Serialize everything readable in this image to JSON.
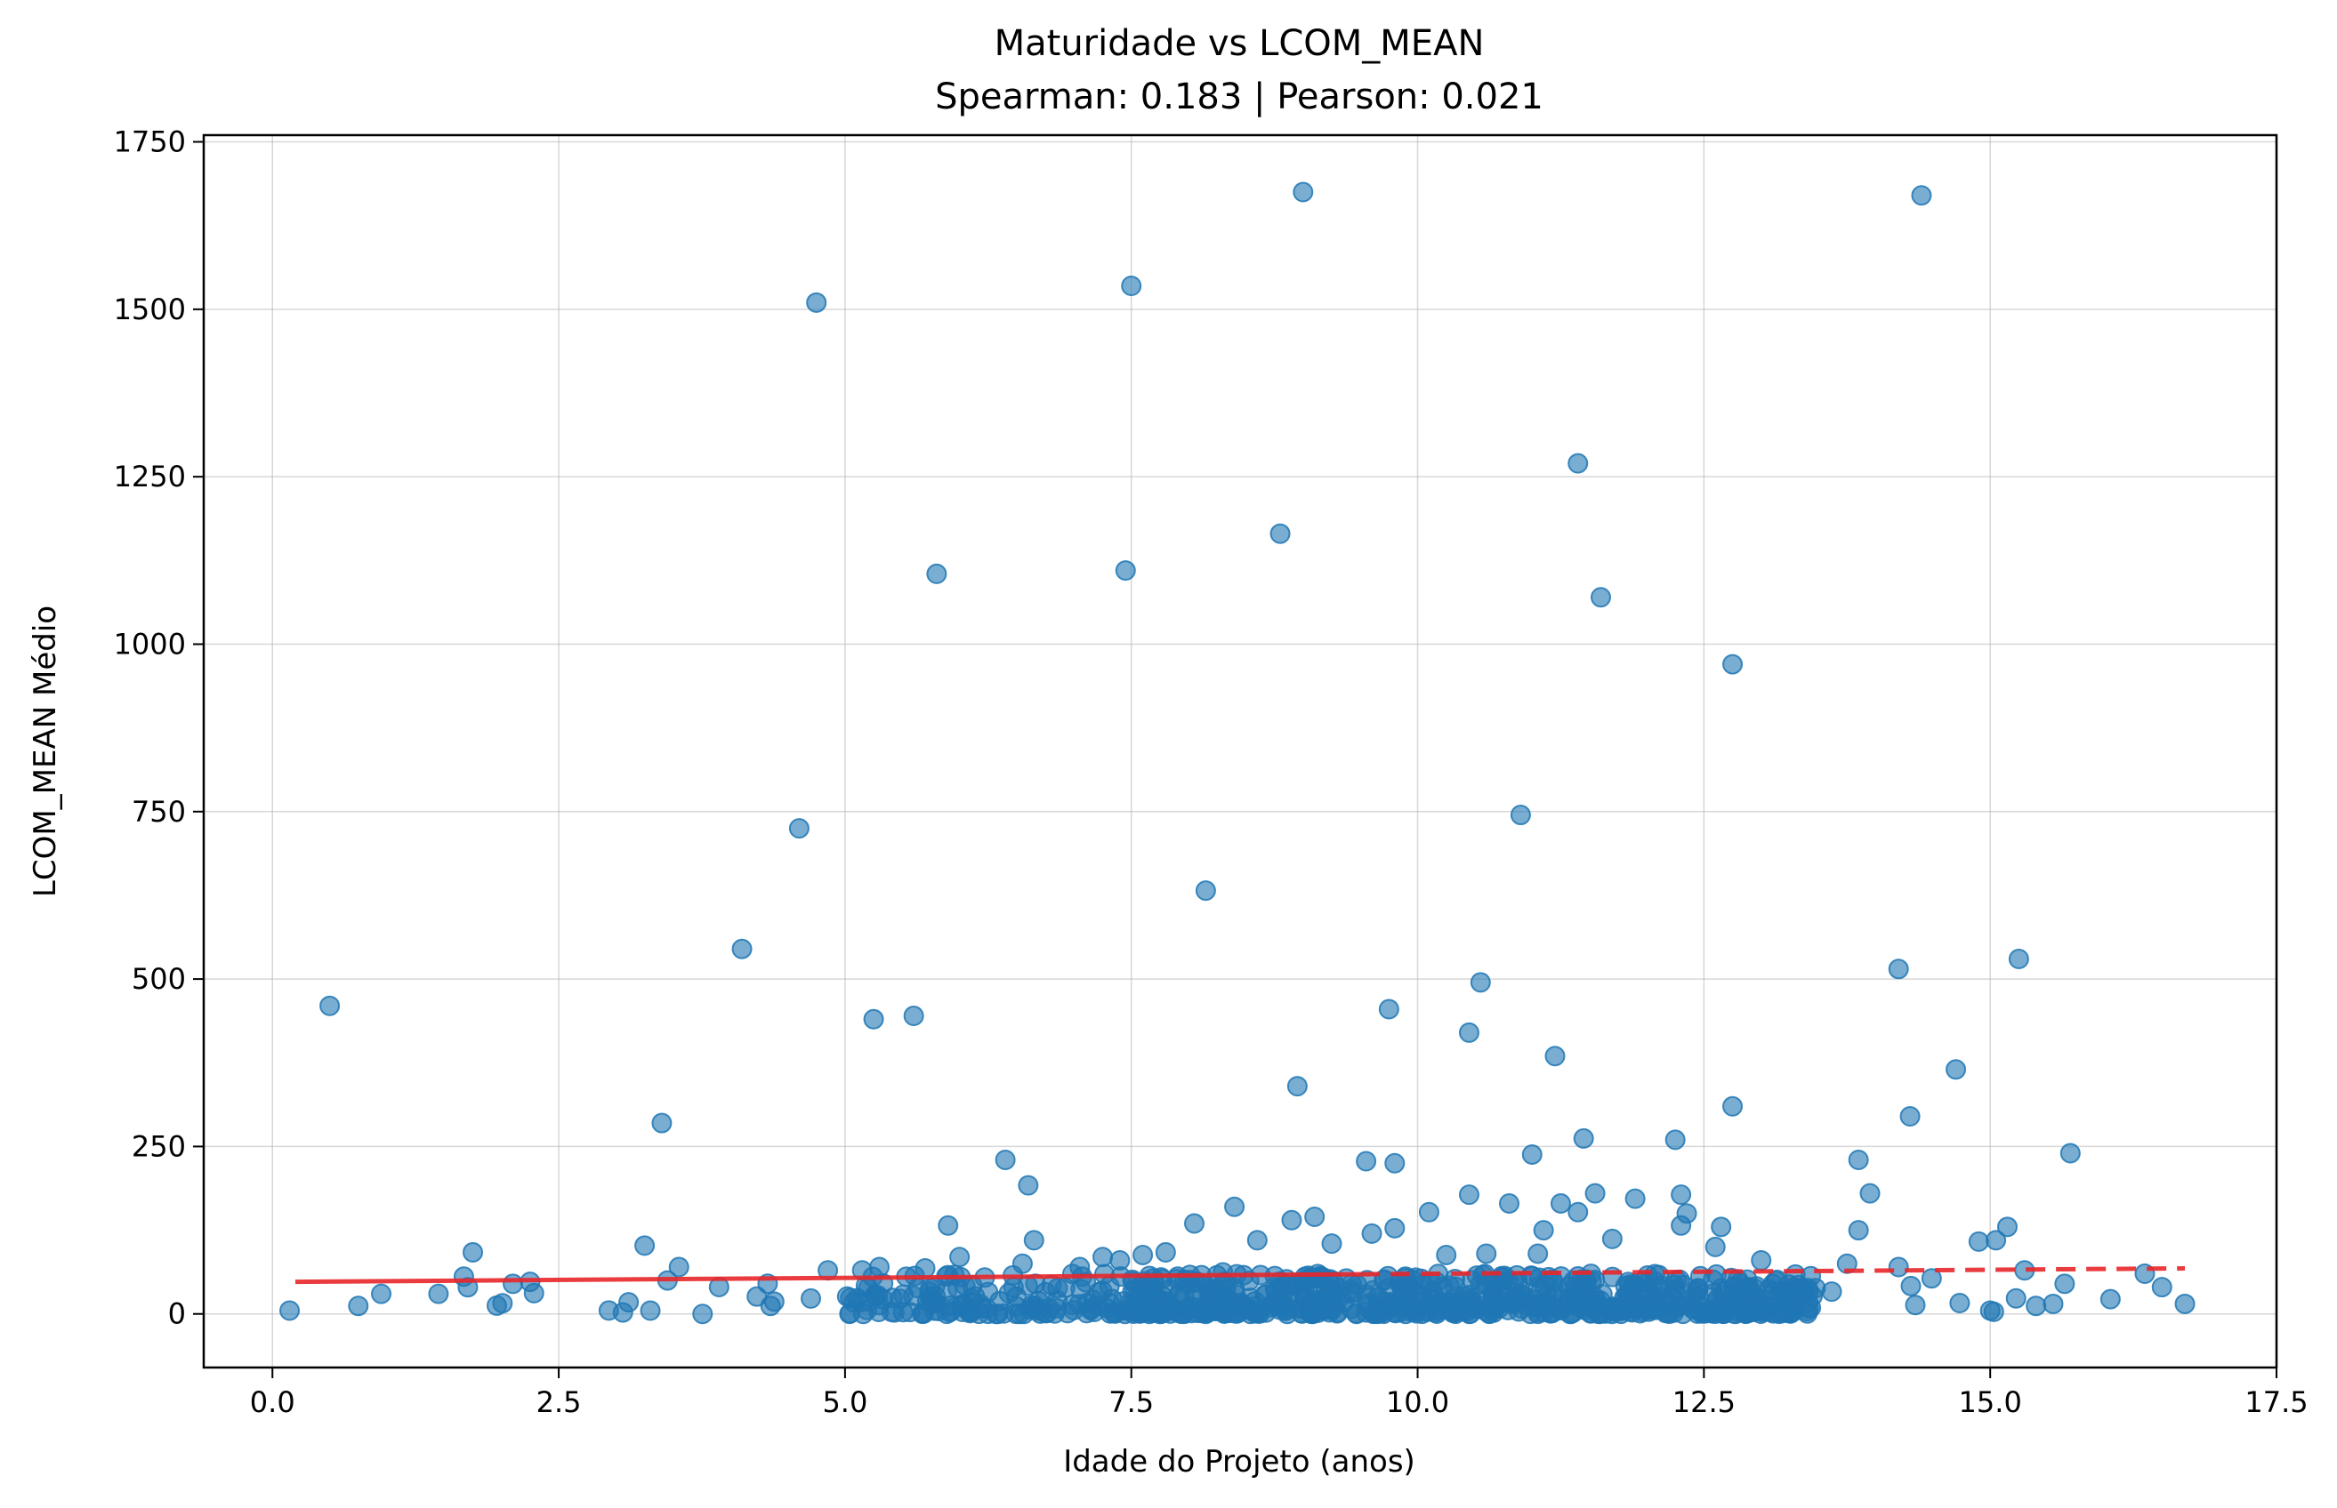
{
  "chart_data": {
    "type": "scatter",
    "title": "Maturidade vs LCOM_MEAN",
    "subtitle": "Spearman: 0.183 | Pearson: 0.021",
    "xlabel": "Idade do Projeto (anos)",
    "ylabel": "LCOM_MEAN Médio",
    "xlim": [
      -0.6,
      17.5
    ],
    "ylim": [
      -80,
      1760
    ],
    "xticks": [
      "0.0",
      "2.5",
      "5.0",
      "7.5",
      "10.0",
      "12.5",
      "15.0",
      "17.5"
    ],
    "yticks": [
      "0",
      "250",
      "500",
      "750",
      "1000",
      "1250",
      "1500",
      "1750"
    ],
    "grid": true,
    "colors": {
      "points": "#1f77b4",
      "trend": "#e8262a"
    },
    "trend_line": {
      "x": [
        0.2,
        16.7
      ],
      "y": [
        48,
        68
      ],
      "solid_until_x": 9.5
    },
    "outliers": [
      [
        0.5,
        460
      ],
      [
        4.75,
        1510
      ],
      [
        7.5,
        1535
      ],
      [
        9.0,
        1675
      ],
      [
        14.4,
        1670
      ],
      [
        5.8,
        1105
      ],
      [
        7.45,
        1110
      ],
      [
        8.8,
        1165
      ],
      [
        11.4,
        1270
      ],
      [
        11.6,
        1070
      ],
      [
        12.75,
        970
      ],
      [
        4.6,
        725
      ],
      [
        10.9,
        745
      ],
      [
        8.15,
        632
      ],
      [
        4.1,
        545
      ],
      [
        5.25,
        440
      ],
      [
        5.6,
        445
      ],
      [
        9.75,
        455
      ],
      [
        10.45,
        420
      ],
      [
        10.55,
        495
      ],
      [
        14.2,
        515
      ],
      [
        15.25,
        530
      ],
      [
        3.4,
        285
      ],
      [
        8.95,
        340
      ],
      [
        11.2,
        385
      ],
      [
        12.75,
        310
      ],
      [
        14.7,
        365
      ],
      [
        14.3,
        295
      ],
      [
        15.7,
        240
      ],
      [
        6.4,
        230
      ],
      [
        9.55,
        228
      ],
      [
        9.8,
        225
      ],
      [
        11.0,
        238
      ],
      [
        11.45,
        262
      ],
      [
        12.25,
        260
      ],
      [
        13.85,
        230
      ],
      [
        13.95,
        180
      ],
      [
        6.6,
        192
      ],
      [
        11.55,
        180
      ],
      [
        10.45,
        178
      ],
      [
        12.3,
        178
      ],
      [
        11.9,
        172
      ],
      [
        8.4,
        160
      ],
      [
        11.25,
        165
      ],
      [
        10.8,
        165
      ],
      [
        10.1,
        152
      ],
      [
        11.4,
        152
      ],
      [
        12.35,
        150
      ],
      [
        8.05,
        135
      ],
      [
        5.9,
        132
      ],
      [
        9.6,
        120
      ],
      [
        9.8,
        128
      ],
      [
        8.9,
        140
      ],
      [
        9.1,
        145
      ],
      [
        12.65,
        130
      ],
      [
        13.85,
        125
      ],
      [
        15.15,
        130
      ],
      [
        11.1,
        125
      ],
      [
        12.3,
        132
      ],
      [
        14.9,
        108
      ],
      [
        15.05,
        110
      ],
      [
        6.65,
        110
      ],
      [
        3.25,
        102
      ],
      [
        1.75,
        92
      ],
      [
        7.6,
        88
      ],
      [
        7.25,
        85
      ],
      [
        7.4,
        80
      ],
      [
        12.6,
        100
      ],
      [
        13.0,
        80
      ],
      [
        13.75,
        75
      ],
      [
        14.2,
        70
      ],
      [
        15.3,
        65
      ],
      [
        16.35,
        60
      ],
      [
        15.65,
        45
      ],
      [
        16.5,
        40
      ],
      [
        16.7,
        15
      ],
      [
        16.05,
        22
      ],
      [
        15.4,
        12
      ],
      [
        15.55,
        15
      ],
      [
        15.0,
        5
      ],
      [
        0.15,
        5
      ],
      [
        0.95,
        30
      ],
      [
        0.75,
        12
      ],
      [
        1.45,
        30
      ],
      [
        2.1,
        45
      ],
      [
        2.25,
        48
      ],
      [
        3.3,
        5
      ],
      [
        3.55,
        70
      ],
      [
        3.45,
        50
      ],
      [
        4.35,
        12
      ],
      [
        4.85,
        65
      ],
      [
        5.15,
        65
      ],
      [
        5.3,
        70
      ],
      [
        5.7,
        68
      ],
      [
        6.0,
        85
      ],
      [
        6.55,
        75
      ],
      [
        7.05,
        70
      ],
      [
        7.8,
        92
      ],
      [
        8.3,
        62
      ],
      [
        8.6,
        110
      ],
      [
        9.25,
        105
      ],
      [
        10.25,
        88
      ],
      [
        10.6,
        90
      ],
      [
        11.05,
        90
      ],
      [
        11.7,
        112
      ]
    ],
    "dense_cluster": {
      "x_range": [
        1.5,
        15.8
      ],
      "y_range": [
        0,
        60
      ],
      "count": 820
    }
  }
}
